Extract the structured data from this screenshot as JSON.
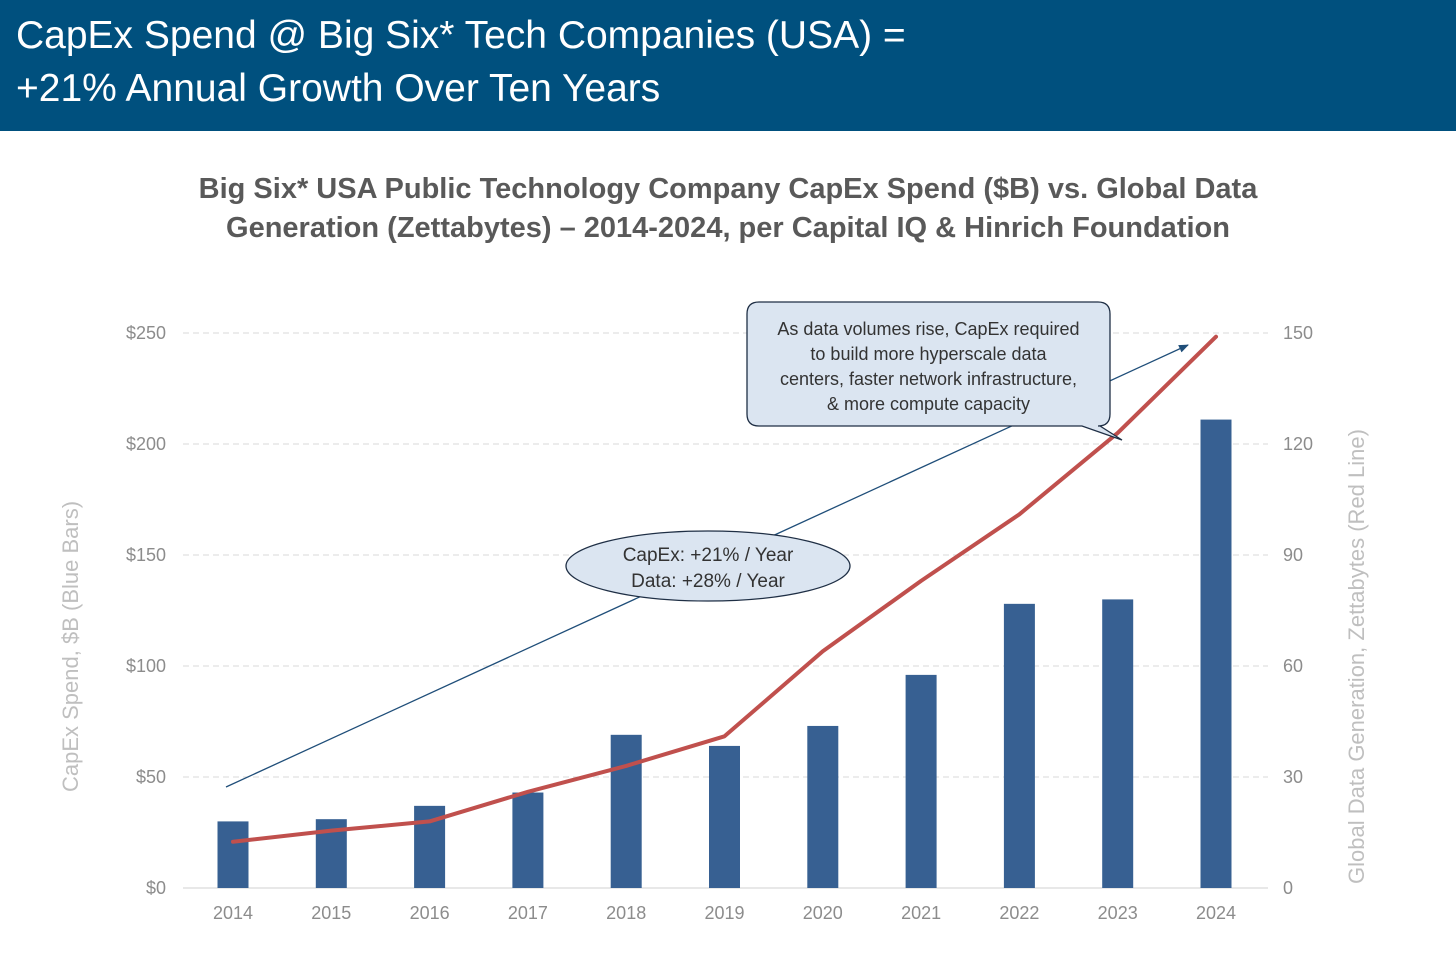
{
  "header": {
    "title_line1": "CapEx Spend @ Big Six* Tech Companies (USA) =",
    "title_line2": "+21% Annual Growth Over Ten Years"
  },
  "chart_title": {
    "line1": "Big Six* USA Public Technology Company CapEx Spend ($B) vs. Global Data",
    "line2": "Generation (Zettabytes) – 2014-2024, per Capital IQ & Hinrich Foundation"
  },
  "chart_data": {
    "type": "bar",
    "categories": [
      "2014",
      "2015",
      "2016",
      "2017",
      "2018",
      "2019",
      "2020",
      "2021",
      "2022",
      "2023",
      "2024"
    ],
    "series": [
      {
        "name": "CapEx Spend ($B)",
        "type": "bar",
        "axis": "left",
        "color": "#376092",
        "values": [
          30,
          31,
          37,
          43,
          69,
          64,
          73,
          96,
          128,
          130,
          211
        ]
      },
      {
        "name": "Global Data Generation (Zettabytes)",
        "type": "line",
        "axis": "right",
        "color": "#c0504d",
        "values": [
          12.5,
          15.5,
          18,
          26,
          33,
          41,
          64,
          83,
          101,
          123,
          149
        ]
      }
    ],
    "ylabel": "CapEx Spend, $B (Blue Bars)",
    "ylim": [
      0,
      250
    ],
    "yticks": [
      "$0",
      "$50",
      "$100",
      "$150",
      "$200",
      "$250"
    ],
    "y2label": "Global Data Generation, Zettabytes (Red Line)",
    "y2lim": [
      0,
      150
    ],
    "y2ticks": [
      "0",
      "30",
      "60",
      "90",
      "120",
      "150"
    ],
    "grid": true,
    "annotations": {
      "callout_lines": [
        "As data volumes rise, CapEx required",
        "to build more hyperscale data",
        "centers, faster network infrastructure,",
        "& more compute capacity"
      ],
      "growth_lines": [
        "CapEx: +21% / Year",
        "Data: +28% / Year"
      ]
    }
  }
}
